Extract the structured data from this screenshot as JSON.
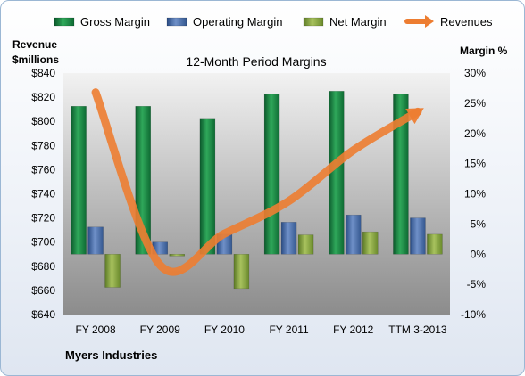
{
  "chart_data": {
    "type": "bar",
    "title": "12-Month Period Margins",
    "company": "Myers Industries",
    "categories": [
      "FY 2008",
      "FY 2009",
      "FY 2010",
      "FY 2011",
      "FY 2012",
      "TTM 3-2013"
    ],
    "series": [
      {
        "name": "Gross Margin",
        "axis": "right",
        "type": "bar",
        "color": "#1f8f4a",
        "values": [
          24.5,
          24.5,
          22.5,
          26.5,
          27.0,
          26.5
        ]
      },
      {
        "name": "Operating Margin",
        "axis": "right",
        "type": "bar",
        "color": "#4a6ea8",
        "values": [
          4.5,
          2.0,
          3.3,
          5.3,
          6.5,
          6.0
        ]
      },
      {
        "name": "Net Margin",
        "axis": "right",
        "type": "bar",
        "color": "#8fac4a",
        "values": [
          -5.5,
          -0.3,
          -5.7,
          3.2,
          3.7,
          3.3
        ]
      },
      {
        "name": "Revenues",
        "axis": "left",
        "type": "line",
        "color": "#ed7d31",
        "values": [
          824,
          681,
          707,
          734,
          776,
          808
        ]
      }
    ],
    "y_left": {
      "label_line1": "Revenue",
      "label_line2": "$millions",
      "min": 640,
      "max": 840,
      "step": 20,
      "prefix": "$"
    },
    "y_right": {
      "label": "Margin %",
      "min": -10,
      "max": 30,
      "step": 5,
      "suffix": "%"
    },
    "legend_position": "top",
    "grid": false
  }
}
